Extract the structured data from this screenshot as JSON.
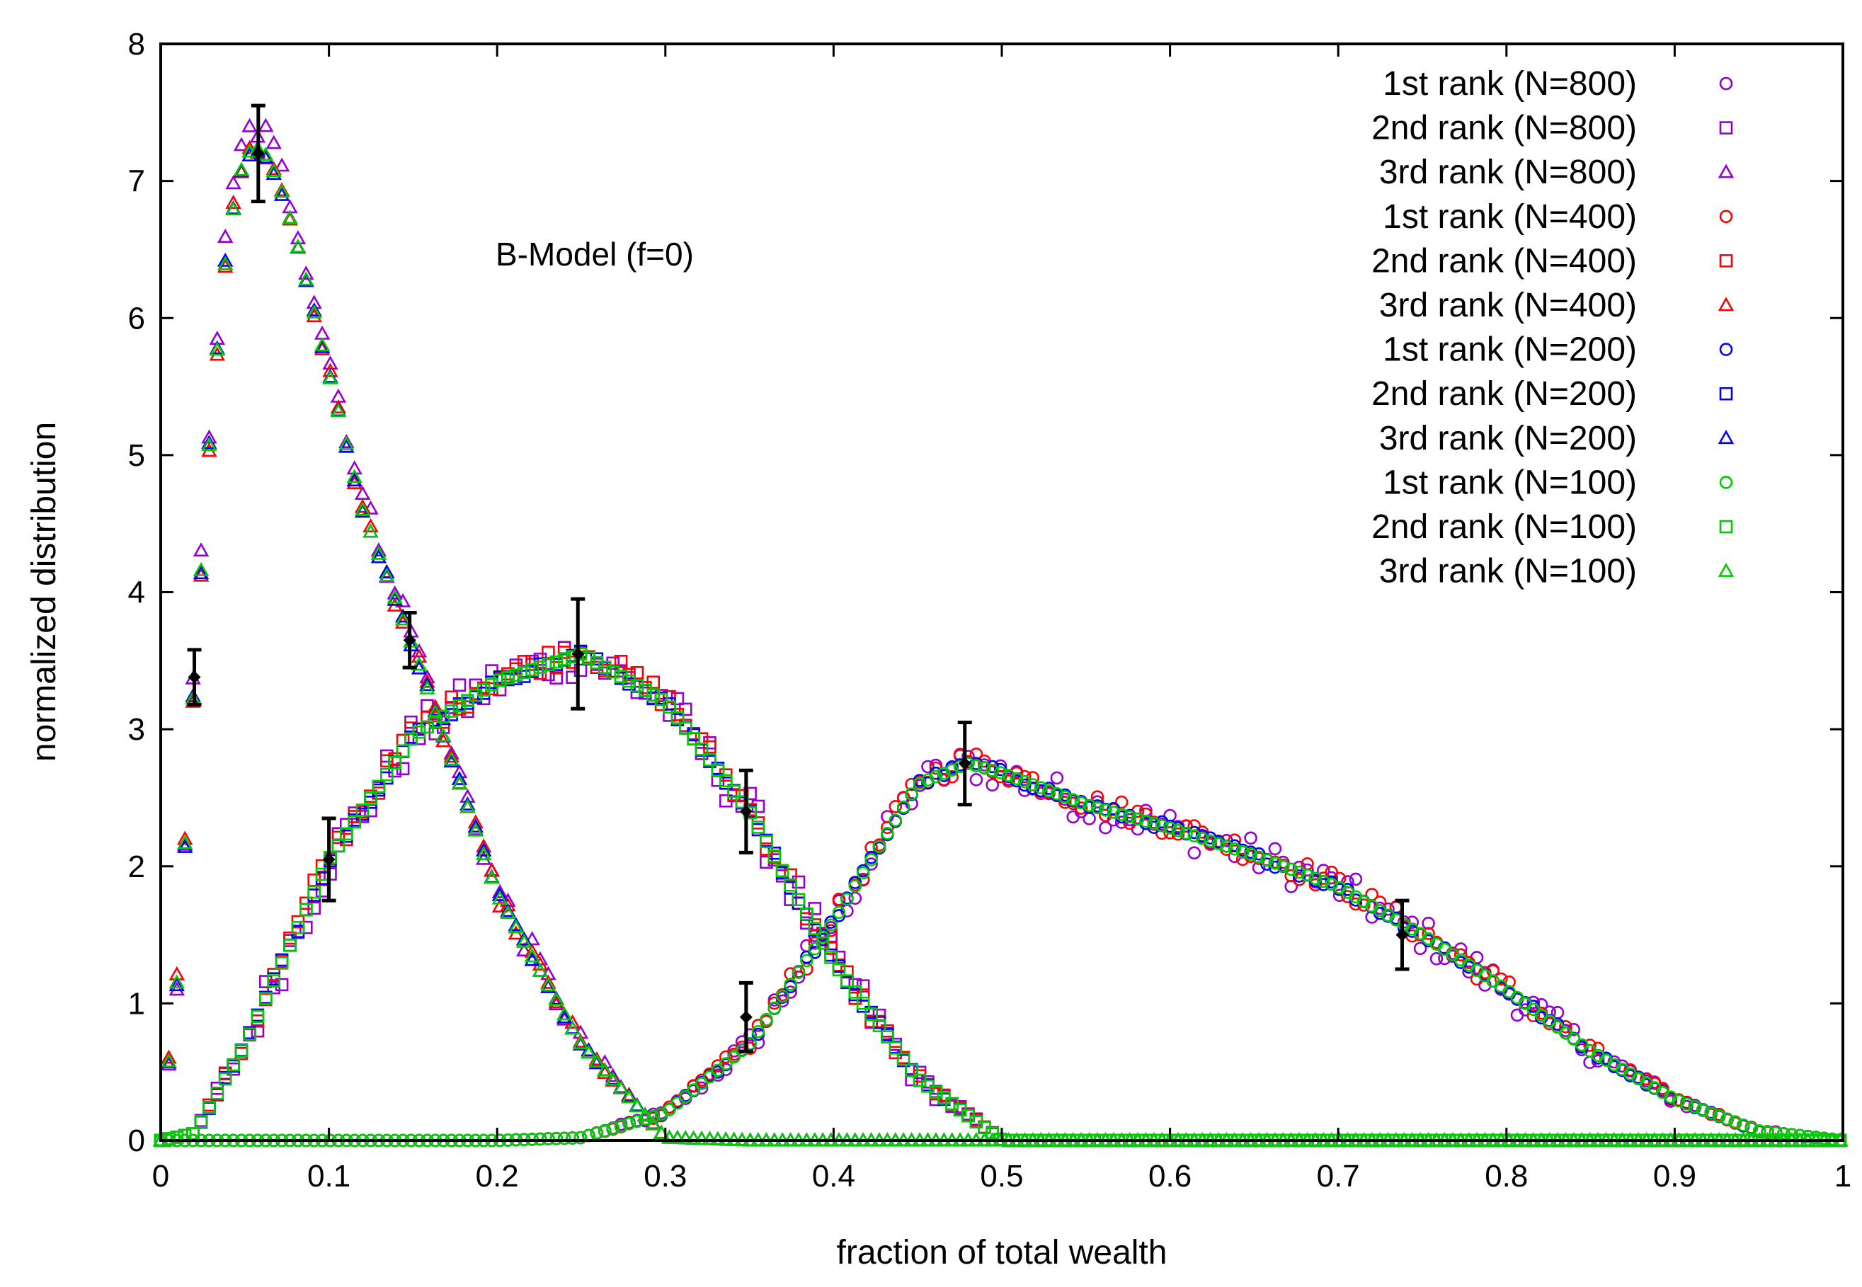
{
  "chart_data": {
    "type": "scatter",
    "title": "",
    "annotation": "B-Model (f=0)",
    "xlabel": "fraction of total wealth",
    "ylabel": "normalized distribution",
    "xlim": [
      0,
      1
    ],
    "ylim": [
      0,
      8
    ],
    "x_ticks": [
      0,
      0.1,
      0.2,
      0.3,
      0.4,
      0.5,
      0.6,
      0.7,
      0.8,
      0.9,
      1
    ],
    "x_tick_labels": [
      "0",
      "0.1",
      "0.2",
      "0.3",
      "0.4",
      "0.5",
      "0.6",
      "0.7",
      "0.8",
      "0.9",
      "1"
    ],
    "y_ticks": [
      0,
      1,
      2,
      3,
      4,
      5,
      6,
      7,
      8
    ],
    "y_tick_labels": [
      "0",
      "1",
      "2",
      "3",
      "4",
      "5",
      "6",
      "7",
      "8"
    ],
    "grid": false,
    "legend_position": "top-right",
    "colors": {
      "N=800": "#9400d3",
      "N=400": "#ff0000",
      "N=200": "#0000ff",
      "N=100": "#00cc00",
      "errorbar": "#000000"
    },
    "series": [
      {
        "name": "1st  rank (N=800)",
        "marker": "circle",
        "color": "#9400d3",
        "rank": 1,
        "noise": 0.13,
        "scale": 1.0
      },
      {
        "name": "2nd  rank (N=800)",
        "marker": "square",
        "color": "#9400d3",
        "rank": 2,
        "noise": 0.16,
        "scale": 1.0
      },
      {
        "name": "3rd  rank (N=800)",
        "marker": "triangle",
        "color": "#9400d3",
        "rank": 3,
        "noise": 0.1,
        "scale": 1.02
      },
      {
        "name": "1st  rank (N=400)",
        "marker": "circle",
        "color": "#ff0000",
        "rank": 1,
        "noise": 0.08,
        "scale": 1.01
      },
      {
        "name": "2nd  rank (N=400)",
        "marker": "square",
        "color": "#ff0000",
        "rank": 2,
        "noise": 0.08,
        "scale": 1.01
      },
      {
        "name": "3rd  rank (N=400)",
        "marker": "triangle",
        "color": "#ff0000",
        "rank": 3,
        "noise": 0.06,
        "scale": 1.0
      },
      {
        "name": "1st  rank (N=200)",
        "marker": "circle",
        "color": "#0000ff",
        "rank": 1,
        "noise": 0.03,
        "scale": 1.0
      },
      {
        "name": "2nd  rank (N=200)",
        "marker": "square",
        "color": "#0000ff",
        "rank": 2,
        "noise": 0.03,
        "scale": 1.0
      },
      {
        "name": "3rd  rank (N=200)",
        "marker": "triangle",
        "color": "#0000ff",
        "rank": 3,
        "noise": 0.03,
        "scale": 1.0
      },
      {
        "name": "1st  rank (N=100)",
        "marker": "circle",
        "color": "#00cc00",
        "rank": 1,
        "noise": 0.0,
        "scale": 1.0
      },
      {
        "name": "2nd  rank (N=100)",
        "marker": "square",
        "color": "#00cc00",
        "rank": 2,
        "noise": 0.0,
        "scale": 1.0
      },
      {
        "name": "3rd  rank (N=100)",
        "marker": "triangle",
        "color": "#00cc00",
        "rank": 3,
        "noise": 0.0,
        "scale": 1.0
      }
    ],
    "curves": {
      "rank1": {
        "x": [
          0.2,
          0.25,
          0.3,
          0.35,
          0.4,
          0.45,
          0.48,
          0.5,
          0.55,
          0.6,
          0.65,
          0.7,
          0.75,
          0.8,
          0.85,
          0.9,
          0.95,
          1.0
        ],
        "y": [
          0.0,
          0.02,
          0.2,
          0.7,
          1.6,
          2.6,
          2.75,
          2.68,
          2.45,
          2.28,
          2.08,
          1.85,
          1.5,
          1.1,
          0.65,
          0.3,
          0.07,
          0.0
        ]
      },
      "rank2": {
        "x": [
          0.0,
          0.02,
          0.05,
          0.1,
          0.15,
          0.2,
          0.25,
          0.3,
          0.35,
          0.4,
          0.45,
          0.5,
          0.55,
          1.0
        ],
        "y": [
          0.0,
          0.05,
          0.7,
          2.05,
          2.95,
          3.35,
          3.55,
          3.2,
          2.4,
          1.3,
          0.45,
          0.0,
          0.0,
          0.0
        ]
      },
      "rank3": {
        "x": [
          0.0,
          0.01,
          0.02,
          0.03,
          0.04,
          0.05,
          0.06,
          0.07,
          0.08,
          0.1,
          0.12,
          0.15,
          0.2,
          0.25,
          0.3,
          0.35,
          1.0
        ],
        "y": [
          0.0,
          1.2,
          3.4,
          5.3,
          6.6,
          7.2,
          7.25,
          7.0,
          6.6,
          5.6,
          4.6,
          3.6,
          1.8,
          0.7,
          0.02,
          0.0,
          0.0
        ]
      }
    },
    "error_bars": [
      {
        "x": 0.02,
        "y": 3.38,
        "err": 0.2
      },
      {
        "x": 0.058,
        "y": 7.2,
        "err": 0.35
      },
      {
        "x": 0.1,
        "y": 2.05,
        "err": 0.3
      },
      {
        "x": 0.148,
        "y": 3.65,
        "err": 0.2
      },
      {
        "x": 0.248,
        "y": 3.55,
        "err": 0.4
      },
      {
        "x": 0.348,
        "y": 2.4,
        "err": 0.3
      },
      {
        "x": 0.348,
        "y": 0.9,
        "err": 0.25
      },
      {
        "x": 0.478,
        "y": 2.75,
        "err": 0.3
      },
      {
        "x": 0.738,
        "y": 1.5,
        "err": 0.25
      }
    ]
  }
}
